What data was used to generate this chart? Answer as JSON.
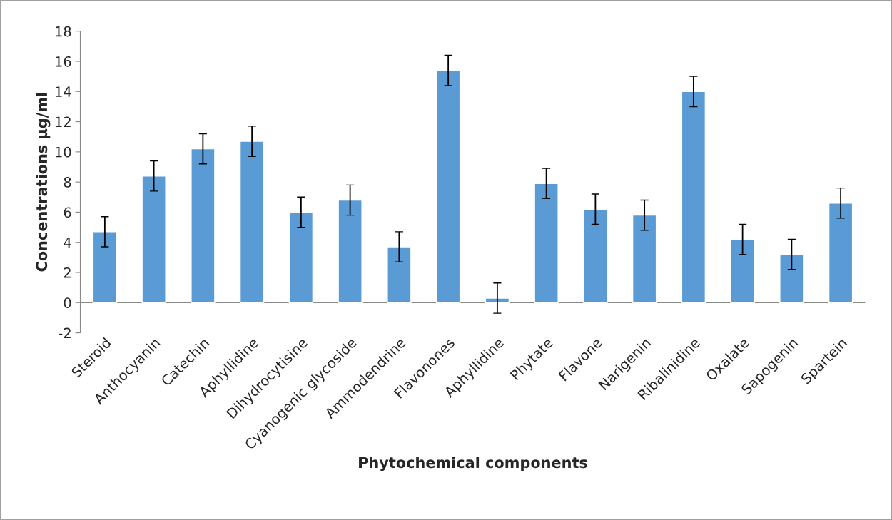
{
  "chart_data": {
    "type": "bar",
    "xlabel": "Phytochemical components",
    "ylabel": "Concentrations µg/ml",
    "categories": [
      "Steroid",
      "Anthocyanin",
      "Catechin",
      "Aphyllidine",
      "Dihydrocytisine",
      "Cyanogenic glycoside",
      "Ammodendrine",
      "Flavonones",
      "Aphyllidine",
      "Phytate",
      "Flavone",
      "Narigenin",
      "Ribalinidine",
      "Oxalate",
      "Sapogenin",
      "Spartein"
    ],
    "values": [
      4.7,
      8.4,
      10.2,
      10.7,
      6.0,
      6.8,
      3.7,
      15.4,
      0.3,
      7.9,
      6.2,
      5.8,
      14.0,
      4.2,
      3.2,
      6.6
    ],
    "errors": [
      1,
      1,
      1,
      1,
      1,
      1,
      1,
      1,
      1,
      1,
      1,
      1,
      1,
      1,
      1,
      1
    ],
    "color": "#5b9bd5",
    "ylim": [
      -2,
      18
    ],
    "yticks": [
      -2,
      0,
      2,
      4,
      6,
      8,
      10,
      12,
      14,
      16,
      18
    ],
    "grid": false,
    "legend": false
  }
}
